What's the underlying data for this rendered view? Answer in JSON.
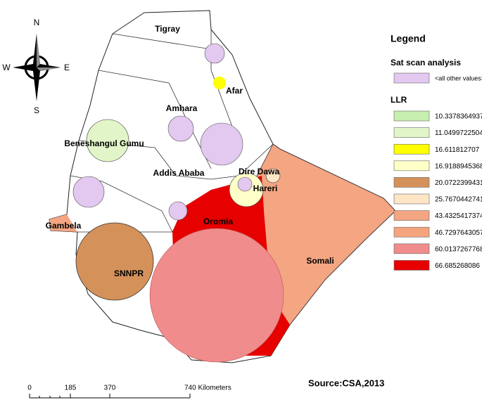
{
  "compass": {
    "n": "N",
    "w": "W",
    "e": "E",
    "s": "S"
  },
  "regions": [
    "Tigray",
    "Afar",
    "Amhara",
    "Beneshangul Gumu",
    "Addis Ababa",
    "Dire Dawa",
    "Hareri",
    "Gambela",
    "Oromia",
    "SNNPR",
    "Somali"
  ],
  "legend": {
    "title": "Legend",
    "group": "Sat scan analysis",
    "other": "<all other values>",
    "other_color": "#e3c8f0",
    "llr_title": "LLR",
    "items": [
      {
        "label": "10.3378364937",
        "color": "#c6efb0"
      },
      {
        "label": "11.0499722504",
        "color": "#e2f5c8"
      },
      {
        "label": "16.611812707",
        "color": "#ffff00"
      },
      {
        "label": "16.9188945368",
        "color": "#ffffc8"
      },
      {
        "label": "20.0722399431",
        "color": "#d4915a"
      },
      {
        "label": "25.7670442741",
        "color": "#fde5c6"
      },
      {
        "label": "43.4325417374",
        "color": "#f4a582"
      },
      {
        "label": "46.7297643057",
        "color": "#f6a47e"
      },
      {
        "label": "60.0137267768",
        "color": "#f08c8c"
      },
      {
        "label": "66.685268086",
        "color": "#e60000"
      }
    ]
  },
  "scale": {
    "labels": [
      "0",
      "185",
      "370",
      "740 Kilometers"
    ]
  },
  "source": "Source:CSA,2013"
}
